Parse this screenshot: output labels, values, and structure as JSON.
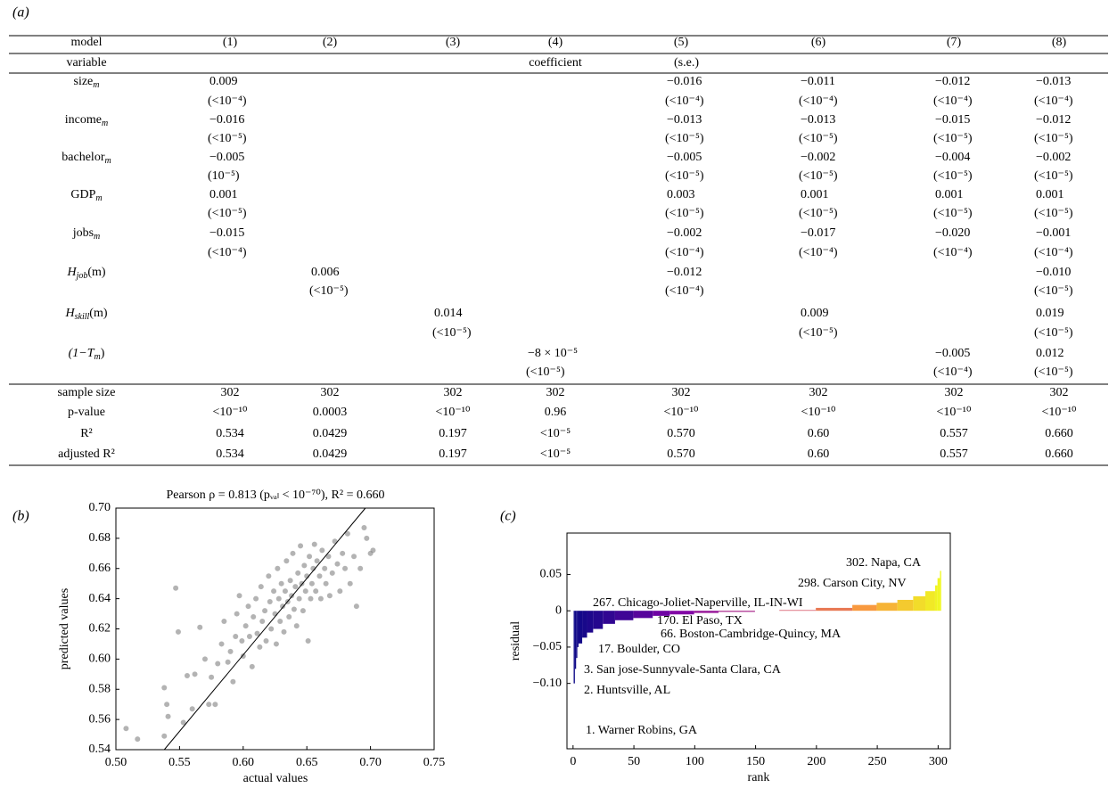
{
  "panels": [
    "(a)",
    "(b)",
    "(c)"
  ],
  "table": {
    "header": [
      "model",
      "(1)",
      "(2)",
      "(3)",
      "(4)",
      "(5)",
      "(6)",
      "(7)",
      "(8)"
    ],
    "subheader": {
      "variable": "variable",
      "coefficient": "coefficient",
      "se": "(s.e.)"
    },
    "rows": [
      {
        "variable": {
          "base": "size",
          "sub": "m"
        },
        "coef": [
          "0.009",
          null,
          null,
          null,
          "−0.016",
          "−0.011",
          "−0.012",
          "−0.013"
        ],
        "se": [
          "(<10⁻⁴)",
          null,
          null,
          null,
          "(<10⁻⁴)",
          "(<10⁻⁴)",
          "(<10⁻⁴)",
          "(<10⁻⁴)"
        ]
      },
      {
        "variable": {
          "base": "income",
          "sub": "m"
        },
        "coef": [
          "−0.016",
          null,
          null,
          null,
          "−0.013",
          "−0.013",
          "−0.015",
          "−0.012"
        ],
        "se": [
          "(<10⁻⁵)",
          null,
          null,
          null,
          "(<10⁻⁵)",
          "(<10⁻⁵)",
          "(<10⁻⁵)",
          "(<10⁻⁵)"
        ]
      },
      {
        "variable": {
          "base": "bachelor",
          "sub": "m"
        },
        "coef": [
          "−0.005",
          null,
          null,
          null,
          "−0.005",
          "−0.002",
          "−0.004",
          "−0.002"
        ],
        "se": [
          "(10⁻⁵)",
          null,
          null,
          null,
          "(<10⁻⁵)",
          "(<10⁻⁵)",
          "(<10⁻⁵)",
          "(<10⁻⁵)"
        ]
      },
      {
        "variable": {
          "base": "GDP",
          "sub": "m"
        },
        "coef": [
          "0.001",
          null,
          null,
          null,
          "0.003",
          "0.001",
          "0.001",
          "0.001"
        ],
        "se": [
          "(<10⁻⁵)",
          null,
          null,
          null,
          "(<10⁻⁵)",
          "(<10⁻⁵)",
          "(<10⁻⁵)",
          "(<10⁻⁵)"
        ]
      },
      {
        "variable": {
          "base": "jobs",
          "sub": "m"
        },
        "coef": [
          "−0.015",
          null,
          null,
          null,
          "−0.002",
          "−0.017",
          "−0.020",
          "−0.001"
        ],
        "se": [
          "(<10⁻⁴)",
          null,
          null,
          null,
          "(<10⁻⁴)",
          "(<10⁻⁴)",
          "(<10⁻⁴)",
          "(<10⁻⁴)"
        ]
      },
      {
        "variable": {
          "base": "H",
          "sub": "job",
          "tail": "(m)"
        },
        "coef": [
          null,
          "0.006",
          null,
          null,
          "−0.012",
          null,
          null,
          "−0.010"
        ],
        "se": [
          null,
          "(<10⁻⁵)",
          null,
          null,
          "(<10⁻⁴)",
          null,
          null,
          "(<10⁻⁵)"
        ]
      },
      {
        "variable": {
          "base": "H",
          "sub": "skill",
          "tail": "(m)"
        },
        "coef": [
          null,
          null,
          "0.014",
          null,
          null,
          "0.009",
          null,
          "0.019"
        ],
        "se": [
          null,
          null,
          "(<10⁻⁵)",
          null,
          null,
          "(<10⁻⁵)",
          null,
          "(<10⁻⁵)"
        ]
      },
      {
        "variable": {
          "base": "(1−T",
          "sub": "m",
          "tail": ")"
        },
        "coef": [
          null,
          null,
          null,
          "−8 × 10⁻⁵",
          null,
          null,
          "−0.005",
          "0.012"
        ],
        "se": [
          null,
          null,
          null,
          "(<10⁻⁵)",
          null,
          null,
          "(<10⁻⁴)",
          "(<10⁻⁵)"
        ]
      }
    ],
    "stats": [
      {
        "label": "sample size",
        "values": [
          302,
          302,
          302,
          302,
          302,
          302,
          302,
          302
        ]
      },
      {
        "label": "p-value",
        "values": [
          "<10⁻¹⁰",
          "0.0003",
          "<10⁻¹⁰",
          "0.96",
          "<10⁻¹⁰",
          "<10⁻¹⁰",
          "<10⁻¹⁰",
          "<10⁻¹⁰"
        ]
      },
      {
        "label": "R²",
        "values": [
          "0.534",
          "0.0429",
          "0.197",
          "<10⁻⁵",
          "0.570",
          "0.60",
          "0.557",
          "0.660"
        ]
      },
      {
        "label": "adjusted R²",
        "values": [
          "0.534",
          "0.0429",
          "0.197",
          "<10⁻⁵",
          "0.570",
          "0.60",
          "0.557",
          "0.660"
        ]
      }
    ]
  },
  "chart_data": [
    {
      "type": "scatter",
      "title": "Pearson ρ = 0.813 (pᵥₐₗ < 10⁻⁷⁰), R² = 0.660",
      "xlabel": "actual values",
      "ylabel": "predicted values",
      "xlim": [
        0.5,
        0.75
      ],
      "ylim": [
        0.54,
        0.7
      ],
      "xticks": [
        {
          "value": 0.5,
          "label": "0.50"
        },
        0.55,
        {
          "value": 0.6,
          "label": "0.60"
        },
        0.65,
        {
          "value": 0.7,
          "label": "0.70"
        },
        0.75
      ],
      "yticks": [
        0.54,
        0.56,
        0.58,
        {
          "value": 0.6,
          "label": "0.60"
        },
        0.62,
        0.64,
        0.66,
        0.68,
        {
          "value": 0.7,
          "label": "0.70"
        }
      ],
      "color": "#808080",
      "alpha": 0.6,
      "x": [
        0.508,
        0.517,
        0.538,
        0.538,
        0.54,
        0.541,
        0.547,
        0.549,
        0.553,
        0.556,
        0.56,
        0.562,
        0.566,
        0.57,
        0.573,
        0.575,
        0.578,
        0.58,
        0.583,
        0.585,
        0.588,
        0.59,
        0.592,
        0.594,
        0.595,
        0.597,
        0.599,
        0.6,
        0.602,
        0.604,
        0.605,
        0.607,
        0.608,
        0.61,
        0.611,
        0.613,
        0.614,
        0.615,
        0.617,
        0.618,
        0.62,
        0.621,
        0.622,
        0.624,
        0.625,
        0.626,
        0.627,
        0.628,
        0.629,
        0.63,
        0.631,
        0.632,
        0.633,
        0.634,
        0.635,
        0.636,
        0.637,
        0.638,
        0.639,
        0.64,
        0.641,
        0.642,
        0.643,
        0.644,
        0.645,
        0.646,
        0.647,
        0.648,
        0.649,
        0.65,
        0.651,
        0.652,
        0.653,
        0.654,
        0.655,
        0.656,
        0.657,
        0.658,
        0.66,
        0.661,
        0.662,
        0.664,
        0.665,
        0.667,
        0.668,
        0.67,
        0.672,
        0.674,
        0.676,
        0.678,
        0.68,
        0.682,
        0.684,
        0.687,
        0.689,
        0.692,
        0.695,
        0.697,
        0.7,
        0.702
      ],
      "y": [
        0.554,
        0.547,
        0.549,
        0.581,
        0.57,
        0.562,
        0.647,
        0.618,
        0.558,
        0.589,
        0.567,
        0.59,
        0.621,
        0.6,
        0.57,
        0.588,
        0.57,
        0.597,
        0.61,
        0.625,
        0.598,
        0.605,
        0.585,
        0.615,
        0.63,
        0.642,
        0.612,
        0.602,
        0.622,
        0.635,
        0.615,
        0.595,
        0.628,
        0.64,
        0.617,
        0.608,
        0.648,
        0.625,
        0.632,
        0.612,
        0.655,
        0.638,
        0.62,
        0.645,
        0.63,
        0.61,
        0.66,
        0.64,
        0.625,
        0.65,
        0.635,
        0.618,
        0.645,
        0.665,
        0.638,
        0.628,
        0.652,
        0.642,
        0.67,
        0.633,
        0.648,
        0.622,
        0.657,
        0.64,
        0.675,
        0.65,
        0.632,
        0.662,
        0.645,
        0.655,
        0.612,
        0.668,
        0.64,
        0.65,
        0.66,
        0.676,
        0.645,
        0.665,
        0.655,
        0.64,
        0.672,
        0.66,
        0.65,
        0.668,
        0.642,
        0.657,
        0.678,
        0.663,
        0.645,
        0.67,
        0.66,
        0.683,
        0.65,
        0.668,
        0.635,
        0.66,
        0.687,
        0.68,
        0.67,
        0.672
      ],
      "reference_line": {
        "x": [
          0.538,
          0.696
        ],
        "y": [
          0.54,
          0.7
        ],
        "color": "#000000"
      }
    },
    {
      "type": "bar",
      "xlabel": "rank",
      "ylabel": "residual",
      "xlim": [
        -5,
        310
      ],
      "ylim": [
        -0.19,
        0.107
      ],
      "xticks": [
        0,
        50,
        100,
        150,
        200,
        250,
        300
      ],
      "yticks": [
        0.05,
        0,
        {
          "value": -0.05,
          "label": "−0.05"
        },
        {
          "value": -0.1,
          "label": "−0.10"
        }
      ],
      "colormap": [
        "#0d0887",
        "#7e03a8",
        "#cc4778",
        "#f89540",
        "#f0f921"
      ],
      "x": [
        1,
        2,
        3,
        4,
        5,
        8,
        12,
        17,
        25,
        35,
        50,
        66,
        80,
        100,
        120,
        150,
        170,
        200,
        230,
        250,
        267,
        280,
        290,
        298,
        300,
        302
      ],
      "values": [
        -0.1,
        -0.08,
        -0.065,
        -0.05,
        -0.045,
        -0.037,
        -0.03,
        -0.025,
        -0.018,
        -0.013,
        -0.01,
        -0.007,
        -0.005,
        -0.003,
        -0.0015,
        0.0,
        0.001,
        0.004,
        0.008,
        0.011,
        0.015,
        0.02,
        0.027,
        0.035,
        0.045,
        0.055
      ],
      "annotations": [
        "302. Napa, CA",
        "298. Carson City, NV",
        "267. Chicago-Joliet-Naperville, IL-IN-WI",
        "170. El Paso, TX",
        "66. Boston-Cambridge-Quincy, MA",
        "17. Boulder, CO",
        "3. San jose-Sunnyvale-Santa Clara, CA",
        "2. Huntsville, AL",
        "1. Warner Robins, GA"
      ]
    }
  ]
}
